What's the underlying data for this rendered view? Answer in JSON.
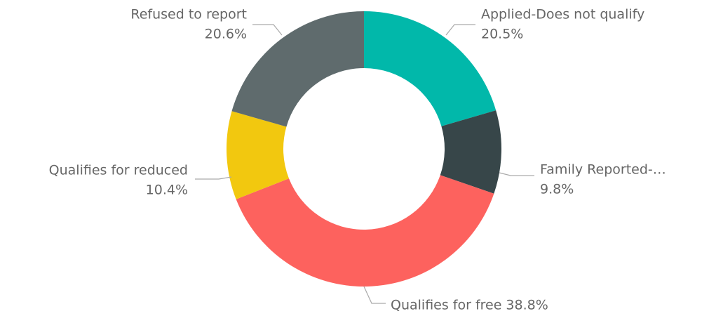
{
  "chart_data": {
    "type": "donut",
    "categories": [
      "Applied-Does not qualify",
      "Family Reported-…",
      "Qualifies for free",
      "Qualifies for reduced",
      "Refused to report"
    ],
    "values": [
      20.5,
      9.8,
      38.8,
      10.4,
      20.6
    ],
    "value_labels": [
      "20.5%",
      "9.8%",
      "38.8%",
      "10.4%",
      "20.6%"
    ],
    "colors": [
      "#01B8AA",
      "#374649",
      "#FD625E",
      "#F2C80F",
      "#5F6B6D"
    ]
  }
}
